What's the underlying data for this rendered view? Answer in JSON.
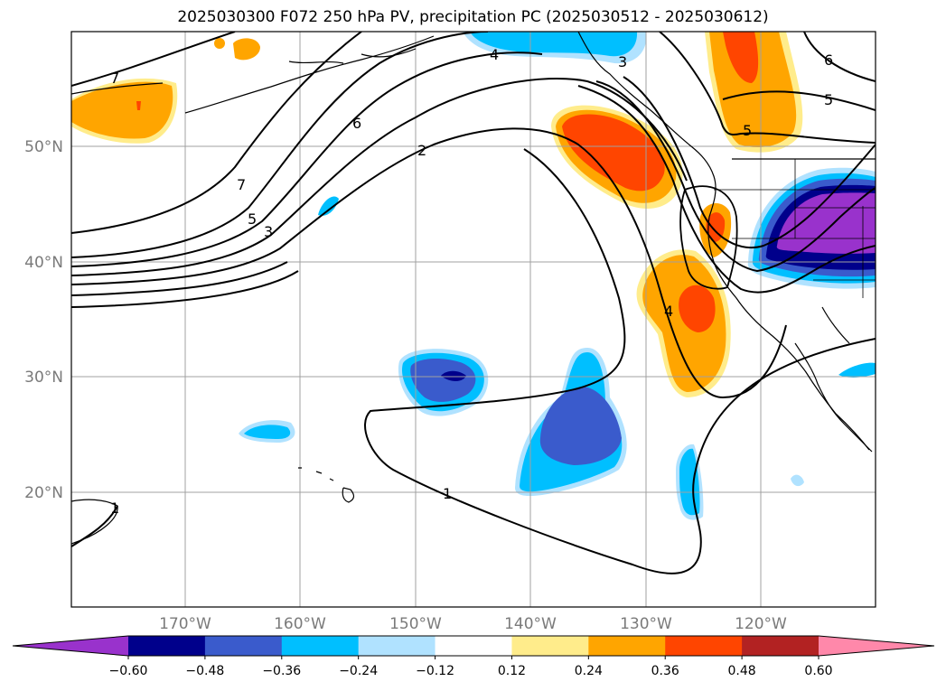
{
  "title": "2025030300 F072 250 hPa PV, precipitation PC (2025030512 - 2025030612)",
  "lat_labels": [
    "50°N",
    "40°N",
    "30°N",
    "20°N"
  ],
  "lon_labels": [
    "170°W",
    "160°W",
    "150°W",
    "140°W",
    "130°W",
    "120°W"
  ],
  "contour_labels": [
    "7",
    "6",
    "5",
    "4",
    "3",
    "2",
    "1"
  ],
  "colorbar": {
    "tick_labels": [
      "−0.60",
      "−0.48",
      "−0.36",
      "−0.24",
      "−0.12",
      "0.12",
      "0.24",
      "0.36",
      "0.48",
      "0.60"
    ],
    "colors": [
      "#9932cc",
      "#00008b",
      "#3a5bcc",
      "#00bfff",
      "#b0e2ff",
      "#ffffff",
      "#ffec8b",
      "#ffa500",
      "#ff4500",
      "#b22222",
      "#ff88aa"
    ]
  },
  "colors": {
    "land": "#000000",
    "grid": "#a0a0a0",
    "contour": "#000000"
  }
}
